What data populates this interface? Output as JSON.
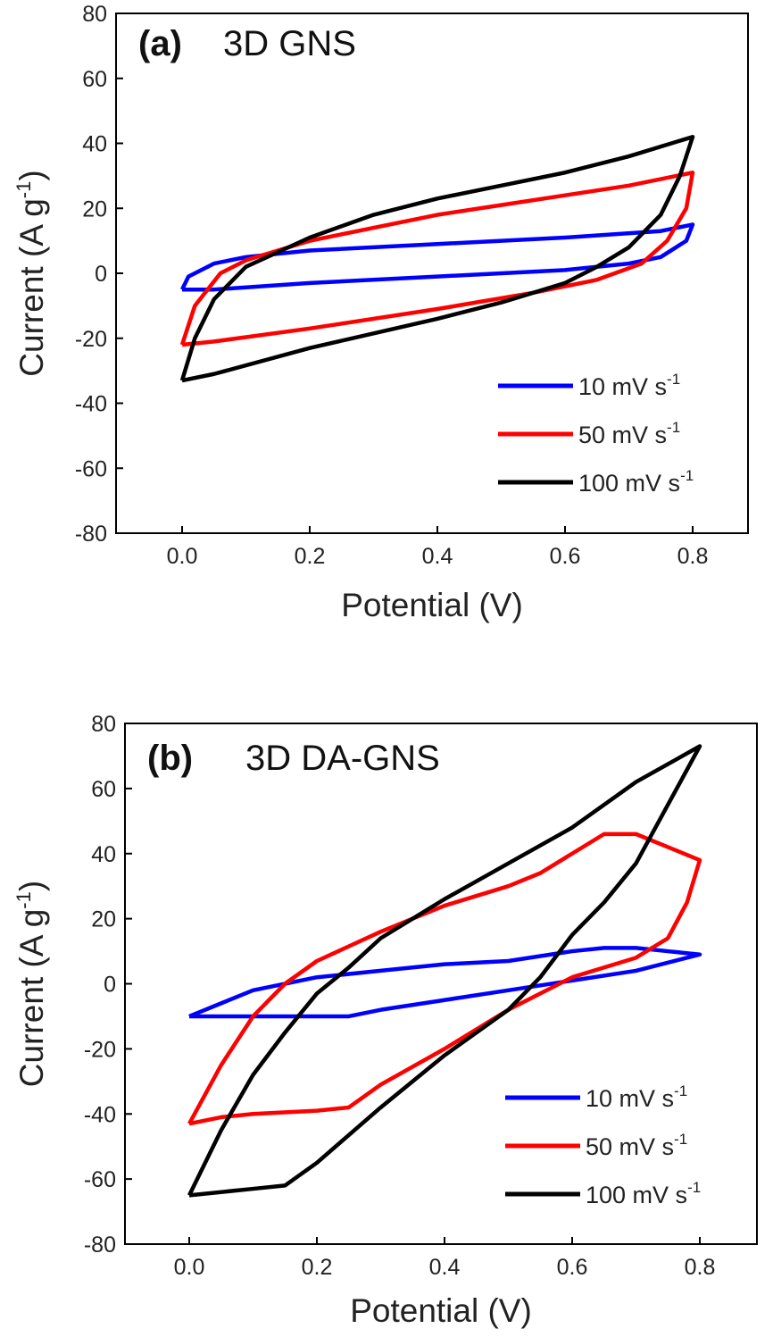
{
  "chart_data": [
    {
      "type": "line",
      "panel_label": "(a)",
      "title": "3D GNS",
      "xlabel": "Potential (V)",
      "ylabel": "Current (A g",
      "ylabel_sup": "-1",
      "ylabel_end": ")",
      "xlim": [
        -0.1,
        0.89
      ],
      "ylim": [
        -80,
        80
      ],
      "xticks": [
        "0.0",
        "0.2",
        "0.4",
        "0.6",
        "0.8"
      ],
      "xtick_values": [
        0,
        0.2,
        0.4,
        0.6,
        0.8
      ],
      "yticks": [
        "80",
        "60",
        "40",
        "20",
        "0",
        "-20",
        "-40",
        "-60",
        "-80"
      ],
      "ytick_values": [
        80,
        60,
        40,
        20,
        0,
        -20,
        -40,
        -60,
        -80
      ],
      "legend_position": "bottom-right",
      "series": [
        {
          "name": "10 mV s",
          "sup": "-1",
          "color": "#0000ff",
          "points": [
            [
              0,
              -5
            ],
            [
              0.01,
              -1
            ],
            [
              0.05,
              3
            ],
            [
              0.1,
              5
            ],
            [
              0.2,
              7
            ],
            [
              0.4,
              9
            ],
            [
              0.6,
              11
            ],
            [
              0.75,
              13
            ],
            [
              0.8,
              15
            ],
            [
              0.79,
              10
            ],
            [
              0.75,
              5
            ],
            [
              0.7,
              3
            ],
            [
              0.6,
              1
            ],
            [
              0.4,
              -1
            ],
            [
              0.2,
              -3
            ],
            [
              0.05,
              -5
            ],
            [
              0,
              -5
            ]
          ]
        },
        {
          "name": "50 mV s",
          "sup": "-1",
          "color": "#ff0000",
          "points": [
            [
              0,
              -22
            ],
            [
              0.02,
              -10
            ],
            [
              0.06,
              0
            ],
            [
              0.1,
              4
            ],
            [
              0.2,
              10
            ],
            [
              0.3,
              14
            ],
            [
              0.4,
              18
            ],
            [
              0.5,
              21
            ],
            [
              0.6,
              24
            ],
            [
              0.7,
              27
            ],
            [
              0.8,
              31
            ],
            [
              0.79,
              20
            ],
            [
              0.76,
              10
            ],
            [
              0.72,
              3
            ],
            [
              0.65,
              -2
            ],
            [
              0.55,
              -6
            ],
            [
              0.4,
              -11
            ],
            [
              0.2,
              -17
            ],
            [
              0.05,
              -21
            ],
            [
              0,
              -22
            ]
          ]
        },
        {
          "name": "100 mV s",
          "sup": "-1",
          "color": "#000000",
          "points": [
            [
              0,
              -33
            ],
            [
              0.02,
              -20
            ],
            [
              0.05,
              -8
            ],
            [
              0.1,
              2
            ],
            [
              0.2,
              11
            ],
            [
              0.3,
              18
            ],
            [
              0.4,
              23
            ],
            [
              0.5,
              27
            ],
            [
              0.6,
              31
            ],
            [
              0.7,
              36
            ],
            [
              0.8,
              42
            ],
            [
              0.78,
              30
            ],
            [
              0.75,
              18
            ],
            [
              0.7,
              8
            ],
            [
              0.65,
              2
            ],
            [
              0.6,
              -3
            ],
            [
              0.5,
              -9
            ],
            [
              0.4,
              -14
            ],
            [
              0.2,
              -23
            ],
            [
              0.05,
              -31
            ],
            [
              0,
              -33
            ]
          ]
        }
      ]
    },
    {
      "type": "line",
      "panel_label": "(b)",
      "title": "3D DA-GNS",
      "xlabel": "Potential (V)",
      "ylabel": "Current (A g",
      "ylabel_sup": "-1",
      "ylabel_end": ")",
      "xlim": [
        -0.1,
        0.89
      ],
      "ylim": [
        -80,
        80
      ],
      "xticks": [
        "0.0",
        "0.2",
        "0.4",
        "0.6",
        "0.8"
      ],
      "xtick_values": [
        0,
        0.2,
        0.4,
        0.6,
        0.8
      ],
      "yticks": [
        "80",
        "60",
        "40",
        "20",
        "0",
        "-20",
        "-40",
        "-60",
        "-80"
      ],
      "ytick_values": [
        80,
        60,
        40,
        20,
        0,
        -20,
        -40,
        -60,
        -80
      ],
      "legend_position": "bottom-right",
      "series": [
        {
          "name": "10 mV s",
          "sup": "-1",
          "color": "#0000ff",
          "points": [
            [
              0,
              -10
            ],
            [
              0.05,
              -6
            ],
            [
              0.1,
              -2
            ],
            [
              0.2,
              2
            ],
            [
              0.3,
              4
            ],
            [
              0.4,
              6
            ],
            [
              0.5,
              7
            ],
            [
              0.6,
              10
            ],
            [
              0.65,
              11
            ],
            [
              0.7,
              11
            ],
            [
              0.75,
              10
            ],
            [
              0.8,
              9
            ],
            [
              0.7,
              4
            ],
            [
              0.6,
              1
            ],
            [
              0.5,
              -2
            ],
            [
              0.4,
              -5
            ],
            [
              0.3,
              -8
            ],
            [
              0.25,
              -10
            ],
            [
              0.1,
              -10
            ],
            [
              0,
              -10
            ]
          ]
        },
        {
          "name": "50 mV s",
          "sup": "-1",
          "color": "#ff0000",
          "points": [
            [
              0,
              -43
            ],
            [
              0.05,
              -25
            ],
            [
              0.1,
              -10
            ],
            [
              0.15,
              0
            ],
            [
              0.2,
              7
            ],
            [
              0.3,
              16
            ],
            [
              0.4,
              24
            ],
            [
              0.5,
              30
            ],
            [
              0.55,
              34
            ],
            [
              0.6,
              40
            ],
            [
              0.65,
              46
            ],
            [
              0.7,
              46
            ],
            [
              0.75,
              42
            ],
            [
              0.8,
              38
            ],
            [
              0.78,
              25
            ],
            [
              0.75,
              14
            ],
            [
              0.7,
              8
            ],
            [
              0.6,
              2
            ],
            [
              0.5,
              -8
            ],
            [
              0.4,
              -20
            ],
            [
              0.3,
              -31
            ],
            [
              0.25,
              -38
            ],
            [
              0.2,
              -39
            ],
            [
              0.1,
              -40
            ],
            [
              0.05,
              -41
            ],
            [
              0,
              -43
            ]
          ]
        },
        {
          "name": "100 mV s",
          "sup": "-1",
          "color": "#000000",
          "points": [
            [
              0,
              -65
            ],
            [
              0.05,
              -45
            ],
            [
              0.1,
              -28
            ],
            [
              0.15,
              -15
            ],
            [
              0.2,
              -3
            ],
            [
              0.25,
              5
            ],
            [
              0.3,
              14
            ],
            [
              0.4,
              26
            ],
            [
              0.5,
              37
            ],
            [
              0.6,
              48
            ],
            [
              0.7,
              62
            ],
            [
              0.8,
              73
            ],
            [
              0.75,
              55
            ],
            [
              0.7,
              37
            ],
            [
              0.65,
              25
            ],
            [
              0.6,
              15
            ],
            [
              0.55,
              2
            ],
            [
              0.5,
              -8
            ],
            [
              0.4,
              -22
            ],
            [
              0.3,
              -38
            ],
            [
              0.2,
              -55
            ],
            [
              0.15,
              -62
            ],
            [
              0.1,
              -63
            ],
            [
              0,
              -65
            ]
          ]
        }
      ]
    }
  ]
}
